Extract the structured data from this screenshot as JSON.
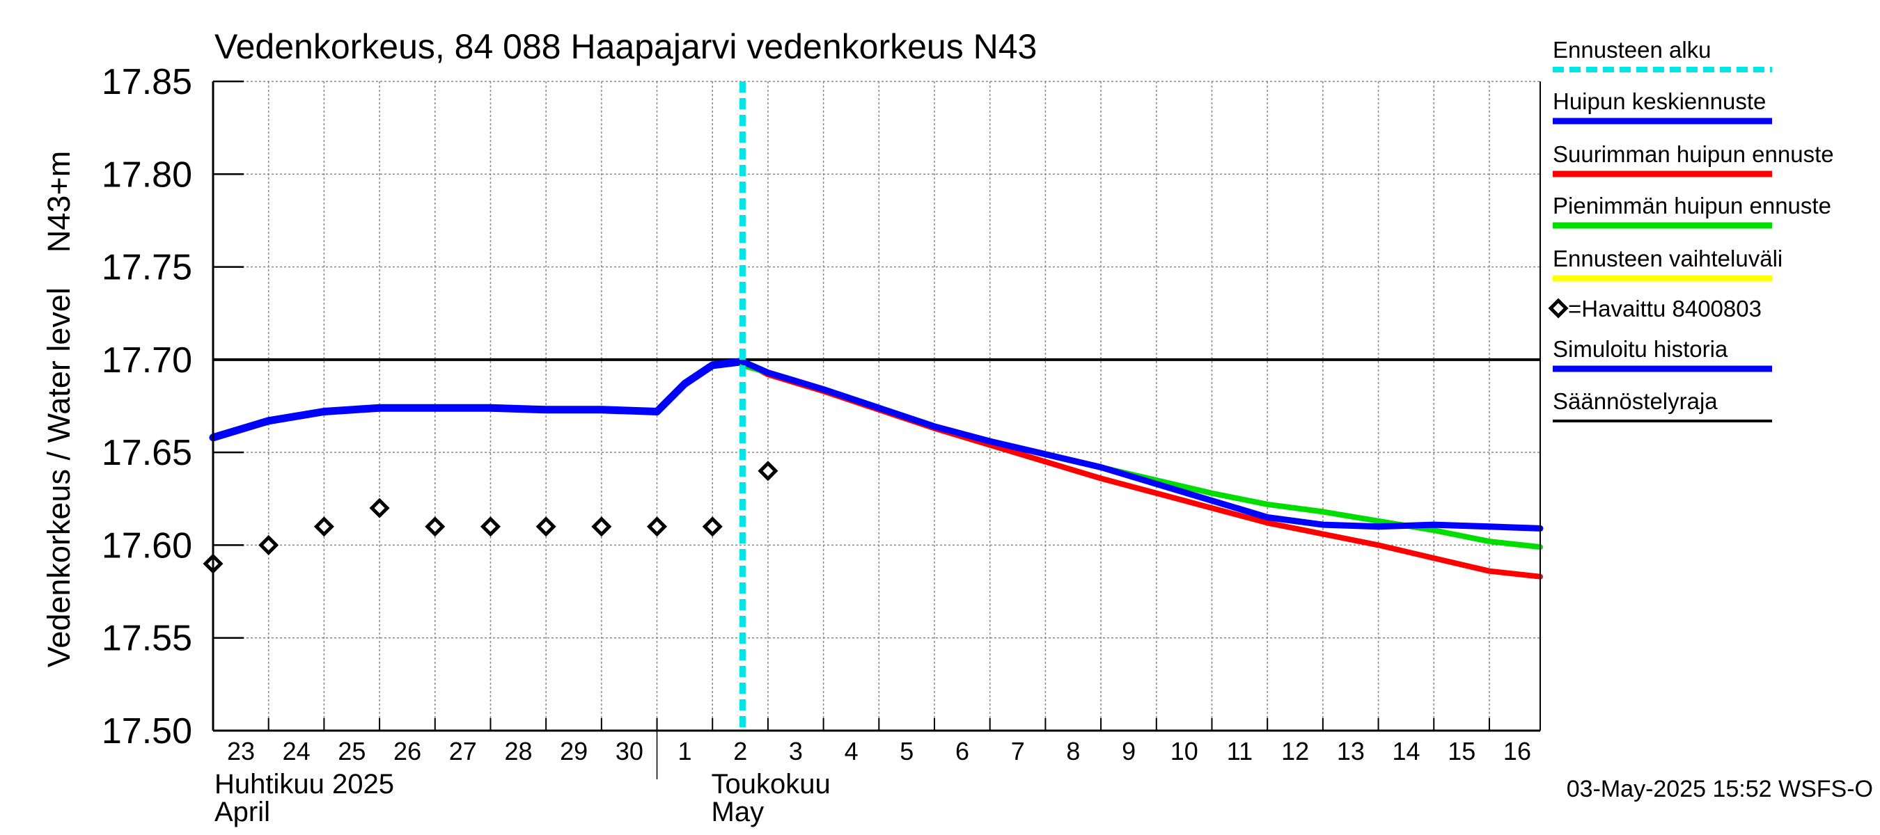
{
  "chart_data": {
    "type": "line",
    "title": "Vedenkorkeus, 84 088 Haapajarvi vedenkorkeus N43",
    "ylabel": "Vedenkorkeus / Water level    N43+m",
    "ylim": [
      17.5,
      17.85
    ],
    "yticks": [
      "17.50",
      "17.55",
      "17.60",
      "17.65",
      "17.70",
      "17.75",
      "17.80",
      "17.85"
    ],
    "xlim": [
      "2025-04-23",
      "2025-05-16T22:00"
    ],
    "grid": true,
    "day_labels": [
      "23",
      "24",
      "25",
      "26",
      "27",
      "28",
      "29",
      "30",
      "1",
      "2",
      "3",
      "4",
      "5",
      "6",
      "7",
      "8",
      "9",
      "10",
      "11",
      "12",
      "13",
      "14",
      "15",
      "16"
    ],
    "month_labels": [
      {
        "fi": "Huhtikuu  2025",
        "en": "April",
        "date": "2025-04-23"
      },
      {
        "fi": "Toukokuu",
        "en": "May",
        "date": "2025-05-01"
      }
    ],
    "forecast_start": "2025-05-02T13:00",
    "regulation_limit": 17.7,
    "legend_placement": "right",
    "legend": [
      {
        "label": "Ennusteen alku",
        "color": "#00e5e5",
        "style": "dashed"
      },
      {
        "label": "Huipun keskiennuste",
        "color": "#0000ff",
        "style": "line"
      },
      {
        "label": "Suurimman huipun ennuste",
        "color": "#ff0000",
        "style": "line"
      },
      {
        "label": "Pienimmän huipun ennuste",
        "color": "#00dd00",
        "style": "line"
      },
      {
        "label": "Ennusteen vaihteluväli",
        "color": "#ffff00",
        "style": "line"
      },
      {
        "label": "=Havaittu 8400803",
        "color": "#000000",
        "style": "marker"
      },
      {
        "label": "Simuloitu historia",
        "color": "#0000ff",
        "style": "line"
      },
      {
        "label": "Säännöstelyraja",
        "color": "#000000",
        "style": "line"
      }
    ],
    "series": [
      {
        "name": "Havaittu 8400803",
        "type": "scatter",
        "color": "#000000",
        "x": [
          "2025-04-23",
          "2025-04-24",
          "2025-04-25",
          "2025-04-26",
          "2025-04-27",
          "2025-04-28",
          "2025-04-29",
          "2025-04-30",
          "2025-05-01",
          "2025-05-02",
          "2025-05-03"
        ],
        "y": [
          17.59,
          17.6,
          17.61,
          17.62,
          17.61,
          17.61,
          17.61,
          17.61,
          17.61,
          17.61,
          17.64
        ]
      },
      {
        "name": "Simuloitu historia",
        "color": "#0000ff",
        "x": [
          "2025-04-23",
          "2025-04-24",
          "2025-04-25",
          "2025-04-26",
          "2025-04-27",
          "2025-04-28",
          "2025-04-29",
          "2025-04-30",
          "2025-05-01",
          "2025-05-01T12:00",
          "2025-05-02",
          "2025-05-02T13:00"
        ],
        "y": [
          17.658,
          17.667,
          17.672,
          17.674,
          17.674,
          17.674,
          17.673,
          17.673,
          17.672,
          17.687,
          17.697,
          17.699
        ]
      },
      {
        "name": "Huipun keskiennuste",
        "color": "#0000ff",
        "x": [
          "2025-05-02T13:00",
          "2025-05-03",
          "2025-05-04",
          "2025-05-05",
          "2025-05-06",
          "2025-05-07",
          "2025-05-08",
          "2025-05-09",
          "2025-05-10",
          "2025-05-11",
          "2025-05-12",
          "2025-05-13",
          "2025-05-14",
          "2025-05-15",
          "2025-05-16",
          "2025-05-16T22:00"
        ],
        "y": [
          17.699,
          17.693,
          17.684,
          17.674,
          17.664,
          17.656,
          17.649,
          17.642,
          17.633,
          17.624,
          17.615,
          17.611,
          17.61,
          17.611,
          17.61,
          17.609
        ]
      },
      {
        "name": "Suurimman huipun ennuste",
        "color": "#ff0000",
        "x": [
          "2025-05-02T13:00",
          "2025-05-03",
          "2025-05-04",
          "2025-05-05",
          "2025-05-06",
          "2025-05-07",
          "2025-05-08",
          "2025-05-09",
          "2025-05-10",
          "2025-05-11",
          "2025-05-12",
          "2025-05-13",
          "2025-05-14",
          "2025-05-15",
          "2025-05-16",
          "2025-05-16T22:00"
        ],
        "y": [
          17.699,
          17.692,
          17.683,
          17.673,
          17.663,
          17.654,
          17.645,
          17.636,
          17.628,
          17.62,
          17.612,
          17.606,
          17.6,
          17.593,
          17.586,
          17.583
        ]
      },
      {
        "name": "Pienimmän huipun ennuste",
        "color": "#00dd00",
        "x": [
          "2025-05-02T13:00",
          "2025-05-03",
          "2025-05-04",
          "2025-05-05",
          "2025-05-06",
          "2025-05-07",
          "2025-05-08",
          "2025-05-09",
          "2025-05-10",
          "2025-05-11",
          "2025-05-12",
          "2025-05-13",
          "2025-05-14",
          "2025-05-15",
          "2025-05-16",
          "2025-05-16T22:00"
        ],
        "y": [
          17.697,
          17.693,
          17.684,
          17.674,
          17.664,
          17.656,
          17.649,
          17.642,
          17.635,
          17.628,
          17.622,
          17.618,
          17.613,
          17.608,
          17.602,
          17.599
        ]
      },
      {
        "name": "Ennusteen vaihteluväli",
        "type": "band",
        "color": "#ffff00",
        "x": [
          "2025-05-02T13:00",
          "2025-05-03",
          "2025-05-04",
          "2025-05-05",
          "2025-05-06",
          "2025-05-07",
          "2025-05-08",
          "2025-05-09",
          "2025-05-10",
          "2025-05-11",
          "2025-05-12",
          "2025-05-13",
          "2025-05-14",
          "2025-05-15",
          "2025-05-16",
          "2025-05-16T22:00"
        ],
        "upper": [
          17.699,
          17.694,
          17.686,
          17.677,
          17.668,
          17.659,
          17.652,
          17.645,
          17.638,
          17.633,
          17.627,
          17.624,
          17.624,
          17.623,
          17.624,
          17.627
        ],
        "lower": [
          17.697,
          17.691,
          17.682,
          17.672,
          17.662,
          17.653,
          17.644,
          17.635,
          17.627,
          17.619,
          17.611,
          17.605,
          17.598,
          17.59,
          17.585,
          17.581
        ]
      }
    ],
    "footer": "03-May-2025 15:52 WSFS-O"
  }
}
